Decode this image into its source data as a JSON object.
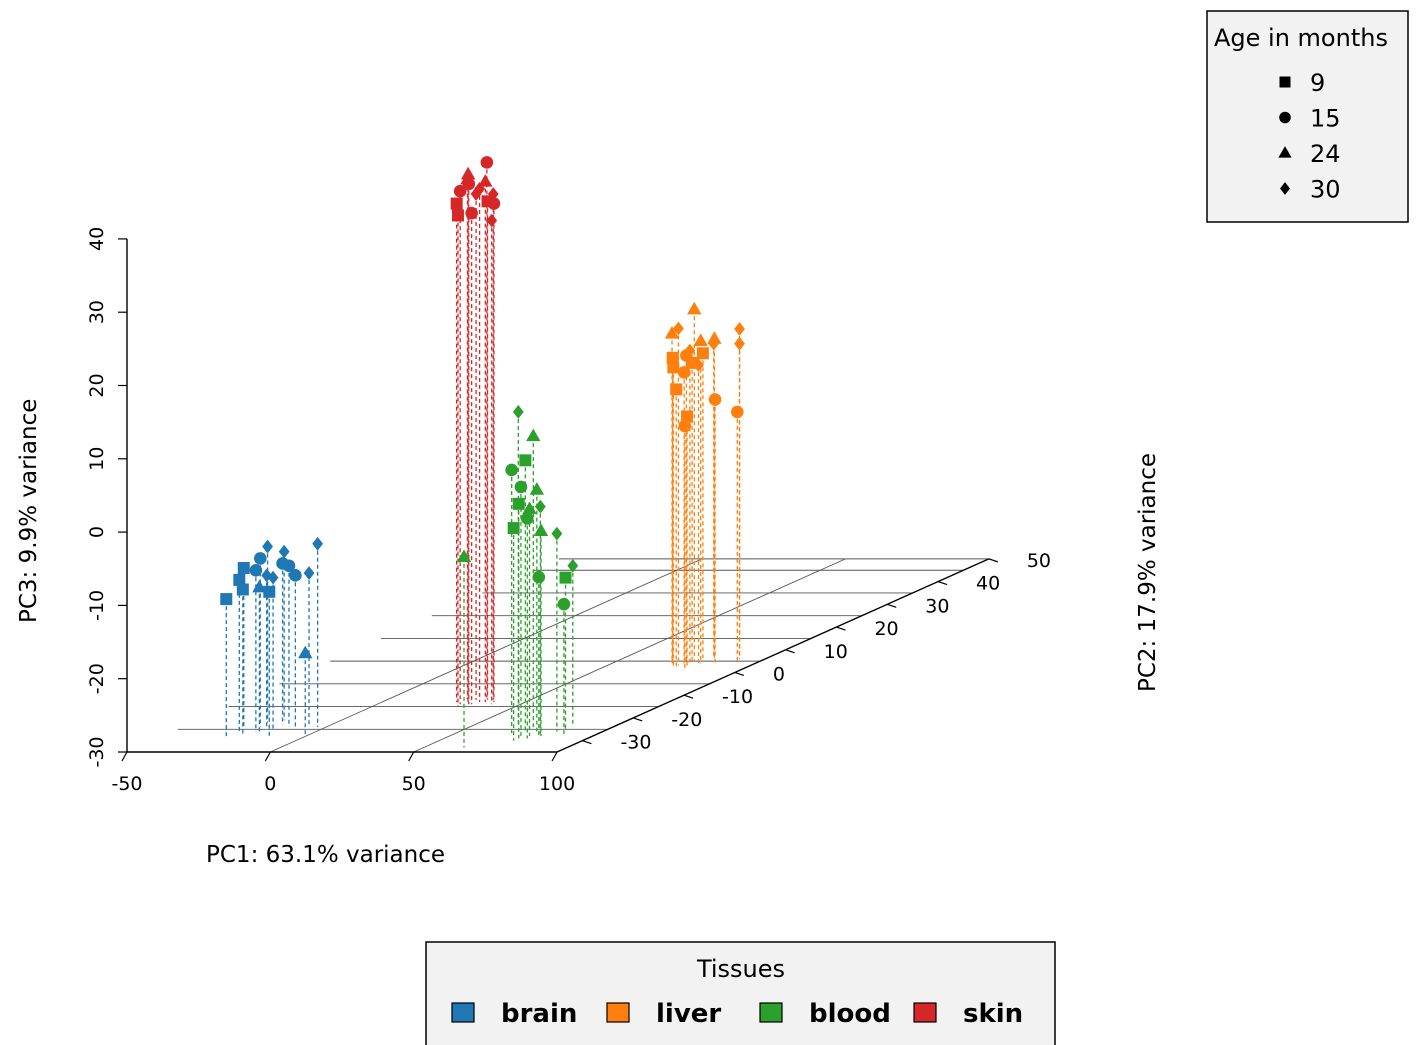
{
  "chart_data": {
    "type": "scatter3d",
    "xlabel": "PC1: 63.1% variance",
    "ylabel": "PC2: 17.9% variance",
    "zlabel": "PC3: 9.9% variance",
    "xlim": [
      -50,
      100
    ],
    "ylim": [
      -35,
      50
    ],
    "zlim": [
      -30,
      40
    ],
    "x_ticks": [
      "-50",
      "0",
      "50",
      "100"
    ],
    "y_ticks": [
      "-30",
      "-20",
      "-10",
      "0",
      "10",
      "20",
      "30",
      "40",
      "50"
    ],
    "z_ticks": [
      "-30",
      "-20",
      "-10",
      "0",
      "10",
      "20",
      "30",
      "40"
    ],
    "shape_legend": {
      "title": "Age in months",
      "items": [
        {
          "label": "9",
          "shape": "square"
        },
        {
          "label": "15",
          "shape": "circle"
        },
        {
          "label": "24",
          "shape": "triangle"
        },
        {
          "label": "30",
          "shape": "diamond"
        }
      ]
    },
    "color_legend": {
      "title": "Tissues",
      "items": [
        {
          "label": "brain",
          "color": "#1f77b4"
        },
        {
          "label": "liver",
          "color": "#ff7f0e"
        },
        {
          "label": "blood",
          "color": "#2ca02c"
        },
        {
          "label": "skin",
          "color": "#d62728"
        }
      ]
    },
    "series": [
      {
        "name": "brain",
        "color": "#1f77b4",
        "points": [
          {
            "x": -27,
            "y": -25,
            "z": -8,
            "age": "9"
          },
          {
            "x": -25,
            "y": -27,
            "z": -9,
            "age": "9"
          },
          {
            "x": -23,
            "y": -24,
            "z": -7,
            "age": "15"
          },
          {
            "x": -21,
            "y": -26,
            "z": -8,
            "age": "15"
          },
          {
            "x": -24,
            "y": -22,
            "z": -6,
            "age": "30"
          },
          {
            "x": -19,
            "y": -25,
            "z": -9,
            "age": "30"
          },
          {
            "x": -22,
            "y": -28,
            "z": -10,
            "age": "9"
          },
          {
            "x": -17,
            "y": -23,
            "z": -8,
            "age": "15"
          },
          {
            "x": -20,
            "y": -21,
            "z": -7,
            "age": "30"
          },
          {
            "x": -15,
            "y": -26,
            "z": -9,
            "age": "30"
          },
          {
            "x": -13,
            "y": -24,
            "z": -8,
            "age": "15"
          },
          {
            "x": -26,
            "y": -29,
            "z": -11,
            "age": "9"
          },
          {
            "x": -18,
            "y": -27,
            "z": -10,
            "age": "24"
          },
          {
            "x": -9,
            "y": -25,
            "z": -9,
            "age": "15"
          },
          {
            "x": -6,
            "y": -24,
            "z": -9,
            "age": "30"
          },
          {
            "x": -11,
            "y": -29,
            "z": -10,
            "age": "9"
          },
          {
            "x": -3,
            "y": -24,
            "z": -5,
            "age": "30"
          },
          {
            "x": -2,
            "y": -27,
            "z": -19,
            "age": "24"
          }
        ]
      },
      {
        "name": "skin",
        "color": "#d62728",
        "points": [
          {
            "x": 26,
            "y": -13,
            "z": 38,
            "age": "9"
          },
          {
            "x": 28,
            "y": -12,
            "z": 41,
            "age": "24"
          },
          {
            "x": 29,
            "y": -14,
            "z": 40,
            "age": "15"
          },
          {
            "x": 30,
            "y": -13,
            "z": 42,
            "age": "24"
          },
          {
            "x": 31,
            "y": -12,
            "z": 39,
            "age": "30"
          },
          {
            "x": 32,
            "y": -14,
            "z": 41,
            "age": "15"
          },
          {
            "x": 33,
            "y": -11,
            "z": 43,
            "age": "15"
          },
          {
            "x": 34,
            "y": -13,
            "z": 40,
            "age": "30"
          },
          {
            "x": 35,
            "y": -12,
            "z": 38,
            "age": "9"
          },
          {
            "x": 36,
            "y": -13,
            "z": 41,
            "age": "24"
          },
          {
            "x": 30,
            "y": -15,
            "z": 37,
            "age": "9"
          },
          {
            "x": 33,
            "y": -14,
            "z": 37,
            "age": "15"
          },
          {
            "x": 37,
            "y": -12,
            "z": 39,
            "age": "30"
          },
          {
            "x": 39,
            "y": -13,
            "z": 38,
            "age": "15"
          },
          {
            "x": 40,
            "y": -14,
            "z": 36,
            "age": "30"
          }
        ]
      },
      {
        "name": "blood",
        "color": "#2ca02c",
        "points": [
          {
            "x": 67,
            "y": -24,
            "z": 13,
            "age": "30"
          },
          {
            "x": 74,
            "y": -25,
            "z": 10,
            "age": "24"
          },
          {
            "x": 70,
            "y": -27,
            "z": 6,
            "age": "15"
          },
          {
            "x": 73,
            "y": -26,
            "z": 7,
            "age": "9"
          },
          {
            "x": 75,
            "y": -28,
            "z": 4,
            "age": "15"
          },
          {
            "x": 76,
            "y": -29,
            "z": 2,
            "age": "9"
          },
          {
            "x": 77,
            "y": -26,
            "z": 3,
            "age": "24"
          },
          {
            "x": 78,
            "y": -28,
            "z": 1,
            "age": "24"
          },
          {
            "x": 79,
            "y": -29,
            "z": 0,
            "age": "15"
          },
          {
            "x": 76,
            "y": -30,
            "z": -1,
            "age": "9"
          },
          {
            "x": 80,
            "y": -27,
            "z": 1,
            "age": "30"
          },
          {
            "x": 82,
            "y": -28,
            "z": -2,
            "age": "24"
          },
          {
            "x": 64,
            "y": -33,
            "z": -4,
            "age": "24"
          },
          {
            "x": 84,
            "y": -26,
            "z": -3,
            "age": "30"
          },
          {
            "x": 83,
            "y": -29,
            "z": -8,
            "age": "15"
          },
          {
            "x": 86,
            "y": -24,
            "z": -8,
            "age": "30"
          },
          {
            "x": 87,
            "y": -26,
            "z": -9,
            "age": "9"
          },
          {
            "x": 90,
            "y": -28,
            "z": -12,
            "age": "15"
          }
        ]
      },
      {
        "name": "liver",
        "color": "#ff7f0e",
        "points": [
          {
            "x": 71,
            "y": 4,
            "z": 15,
            "age": "24"
          },
          {
            "x": 75,
            "y": 3,
            "z": 16,
            "age": "30"
          },
          {
            "x": 77,
            "y": 5,
            "z": 18,
            "age": "24"
          },
          {
            "x": 73,
            "y": 3,
            "z": 12,
            "age": "9"
          },
          {
            "x": 75,
            "y": 2,
            "z": 11,
            "age": "9"
          },
          {
            "x": 76,
            "y": 4,
            "z": 12,
            "age": "15"
          },
          {
            "x": 77,
            "y": 3,
            "z": 10,
            "age": "15"
          },
          {
            "x": 78,
            "y": 4,
            "z": 11,
            "age": "9"
          },
          {
            "x": 79,
            "y": 3,
            "z": 13,
            "age": "30"
          },
          {
            "x": 80,
            "y": 5,
            "z": 12,
            "age": "9"
          },
          {
            "x": 81,
            "y": 4,
            "z": 14,
            "age": "24"
          },
          {
            "x": 82,
            "y": 6,
            "z": 13,
            "age": "30"
          },
          {
            "x": 76,
            "y": 2,
            "z": 8,
            "age": "9"
          },
          {
            "x": 78,
            "y": 3,
            "z": 4,
            "age": "9"
          },
          {
            "x": 79,
            "y": 2,
            "z": 3,
            "age": "15"
          },
          {
            "x": 82,
            "y": 3,
            "z": 11,
            "age": "30"
          },
          {
            "x": 84,
            "y": 5,
            "z": 14,
            "age": "24"
          },
          {
            "x": 86,
            "y": 4,
            "z": 6,
            "age": "15"
          },
          {
            "x": 91,
            "y": 6,
            "z": 15,
            "age": "30"
          },
          {
            "x": 91,
            "y": 6,
            "z": 13,
            "age": "30"
          },
          {
            "x": 92,
            "y": 5,
            "z": 4,
            "age": "15"
          }
        ]
      }
    ]
  }
}
